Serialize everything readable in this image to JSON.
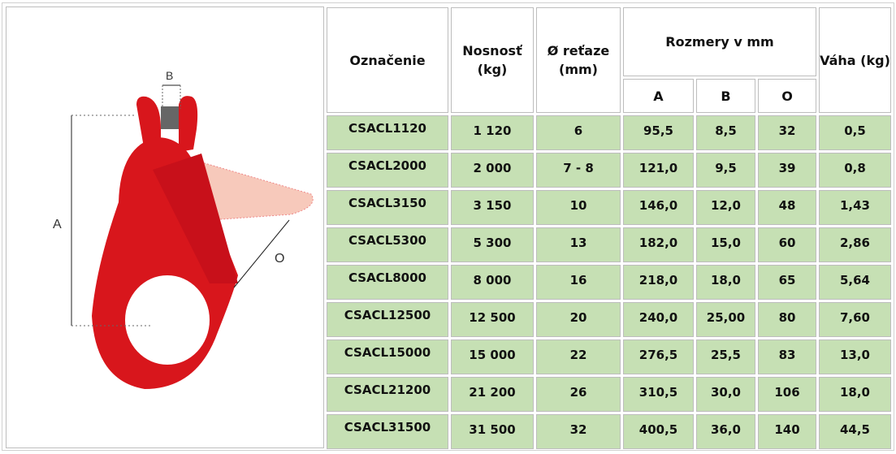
{
  "image": {
    "labels": {
      "a": "A",
      "b": "B",
      "o": "O"
    }
  },
  "headers": {
    "designation": "Označenie",
    "capacity": "Nosnosť (kg)",
    "chain": "Ø reťaze (mm)",
    "dims": "Rozmery v mm",
    "a": "A",
    "b": "B",
    "o": "O",
    "weight": "Váha (kg)"
  },
  "rows": [
    [
      "CSACL1120",
      "1 120",
      "6",
      "95,5",
      "8,5",
      "32",
      "0,5"
    ],
    [
      "CSACL2000",
      "2 000",
      "7 - 8",
      "121,0",
      "9,5",
      "39",
      "0,8"
    ],
    [
      "CSACL3150",
      "3 150",
      "10",
      "146,0",
      "12,0",
      "48",
      "1,43"
    ],
    [
      "CSACL5300",
      "5 300",
      "13",
      "182,0",
      "15,0",
      "60",
      "2,86"
    ],
    [
      "CSACL8000",
      "8 000",
      "16",
      "218,0",
      "18,0",
      "65",
      "5,64"
    ],
    [
      "CSACL12500",
      "12 500",
      "20",
      "240,0",
      "25,00",
      "80",
      "7,60"
    ],
    [
      "CSACL15000",
      "15 000",
      "22",
      "276,5",
      "25,5",
      "83",
      "13,0"
    ],
    [
      "CSACL21200",
      "21 200",
      "26",
      "310,5",
      "30,0",
      "106",
      "18,0"
    ],
    [
      "CSACL31500",
      "31 500",
      "32",
      "400,5",
      "36,0",
      "140",
      "44,5"
    ]
  ]
}
